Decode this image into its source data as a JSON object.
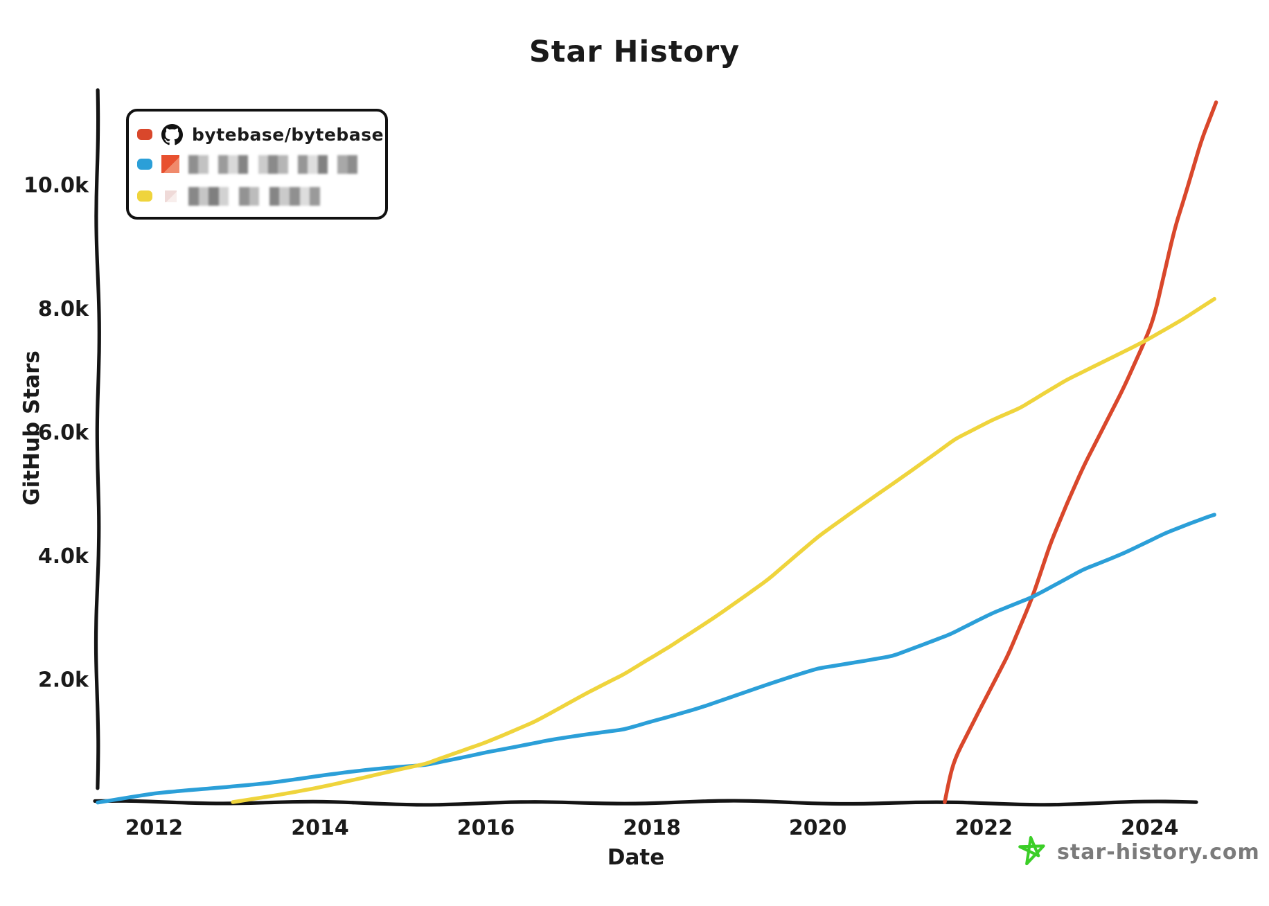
{
  "chart_data": {
    "type": "line",
    "title": "Star History",
    "xlabel": "Date",
    "ylabel": "GitHub Stars",
    "xlim": [
      2011.32,
      2024.82
    ],
    "ylim": [
      0,
      11450
    ],
    "grid": false,
    "legend_position": "top-left",
    "x_ticks": [
      {
        "value": 2012,
        "label": "2012"
      },
      {
        "value": 2014,
        "label": "2014"
      },
      {
        "value": 2016,
        "label": "2016"
      },
      {
        "value": 2018,
        "label": "2018"
      },
      {
        "value": 2020,
        "label": "2020"
      },
      {
        "value": 2022,
        "label": "2022"
      },
      {
        "value": 2024,
        "label": "2024"
      }
    ],
    "y_ticks": [
      {
        "value": 2000,
        "label": "2.0k"
      },
      {
        "value": 4000,
        "label": "4.0k"
      },
      {
        "value": 6000,
        "label": "6.0k"
      },
      {
        "value": 8000,
        "label": "8.0k"
      },
      {
        "value": 10000,
        "label": "10.0k"
      }
    ],
    "series": [
      {
        "name": "bytebase/bytebase",
        "color": "#D9472B",
        "points": [
          [
            2021.53,
            0
          ],
          [
            2021.58,
            350
          ],
          [
            2021.65,
            700
          ],
          [
            2021.8,
            1100
          ],
          [
            2021.95,
            1500
          ],
          [
            2022.1,
            1890
          ],
          [
            2022.3,
            2420
          ],
          [
            2022.58,
            3320
          ],
          [
            2022.8,
            4200
          ],
          [
            2023.0,
            4850
          ],
          [
            2023.2,
            5450
          ],
          [
            2023.45,
            6100
          ],
          [
            2023.7,
            6750
          ],
          [
            2023.95,
            7490
          ],
          [
            2024.05,
            7840
          ],
          [
            2024.15,
            8400
          ],
          [
            2024.3,
            9280
          ],
          [
            2024.4,
            9700
          ],
          [
            2024.5,
            10150
          ],
          [
            2024.62,
            10700
          ],
          [
            2024.72,
            11050
          ],
          [
            2024.8,
            11330
          ]
        ]
      },
      {
        "name": "",
        "name_blurred": true,
        "color": "#2B9FD8",
        "points": [
          [
            2011.32,
            15
          ],
          [
            2012,
            140
          ],
          [
            2012.7,
            230
          ],
          [
            2013.4,
            330
          ],
          [
            2014,
            430
          ],
          [
            2014.6,
            520
          ],
          [
            2015.27,
            610
          ],
          [
            2016,
            830
          ],
          [
            2016.8,
            1020
          ],
          [
            2017.66,
            1190
          ],
          [
            2018,
            1330
          ],
          [
            2018.6,
            1560
          ],
          [
            2019.3,
            1860
          ],
          [
            2020,
            2160
          ],
          [
            2020.9,
            2380
          ],
          [
            2021.6,
            2720
          ],
          [
            2022.1,
            3050
          ],
          [
            2022.58,
            3320
          ],
          [
            2023.2,
            3790
          ],
          [
            2023.7,
            4060
          ],
          [
            2024.2,
            4370
          ],
          [
            2024.78,
            4660
          ]
        ]
      },
      {
        "name": "",
        "name_blurred": true,
        "color": "#EFD43C",
        "points": [
          [
            2012.95,
            5
          ],
          [
            2013.4,
            110
          ],
          [
            2014,
            260
          ],
          [
            2014.6,
            420
          ],
          [
            2015.27,
            610
          ],
          [
            2016,
            980
          ],
          [
            2016.6,
            1330
          ],
          [
            2017.2,
            1760
          ],
          [
            2017.66,
            2070
          ],
          [
            2018.2,
            2520
          ],
          [
            2018.8,
            3060
          ],
          [
            2019.4,
            3620
          ],
          [
            2020,
            4290
          ],
          [
            2020.6,
            4870
          ],
          [
            2021.1,
            5350
          ],
          [
            2021.66,
            5890
          ],
          [
            2022.1,
            6180
          ],
          [
            2022.44,
            6370
          ],
          [
            2023,
            6830
          ],
          [
            2023.5,
            7180
          ],
          [
            2023.95,
            7490
          ],
          [
            2024.4,
            7830
          ],
          [
            2024.78,
            8150
          ]
        ]
      }
    ]
  },
  "legend": {
    "items": [
      {
        "label": "bytebase/bytebase",
        "swatch_color": "#D9472B",
        "avatar": "github-logo",
        "blurred": false
      },
      {
        "label": "",
        "swatch_color": "#2B9FD8",
        "avatar": "blurred-orange-avatar",
        "blurred": true,
        "avatar_color_a": "#E8502F",
        "avatar_color_b": "#F08A6C",
        "blur_shades": [
          "#8f8f8f",
          "#c2c2c2",
          "#ffffff",
          "#9b9b9b",
          "#d8d8d8",
          "#848484",
          "#ffffff",
          "#cccccc",
          "#8a8a8a",
          "#b5b5b5",
          "#ffffff",
          "#969696",
          "#dedede",
          "#818181",
          "#ffffff",
          "#a8a8a8",
          "#8d8d8d"
        ]
      },
      {
        "label": "",
        "swatch_color": "#EFD43C",
        "avatar": "blurred-pink-avatar",
        "blurred": true,
        "avatar_color_a": "#EFDAD8",
        "avatar_color_b": "#F8EEEC",
        "blur_shades": [
          "#888888",
          "#c6c6c6",
          "#7f7f7f",
          "#d2d2d2",
          "#ffffff",
          "#939393",
          "#bcbcbc",
          "#ffffff",
          "#858585",
          "#cacaca",
          "#909090",
          "#dddddd",
          "#9a9a9a"
        ]
      }
    ]
  },
  "watermark": {
    "text": "star-history.com",
    "star_color": "#3BCE27",
    "text_color": "#7B7B7B"
  },
  "style": {
    "axis_color": "#141414",
    "tick_font_size": 30,
    "line_width": 5.5
  }
}
